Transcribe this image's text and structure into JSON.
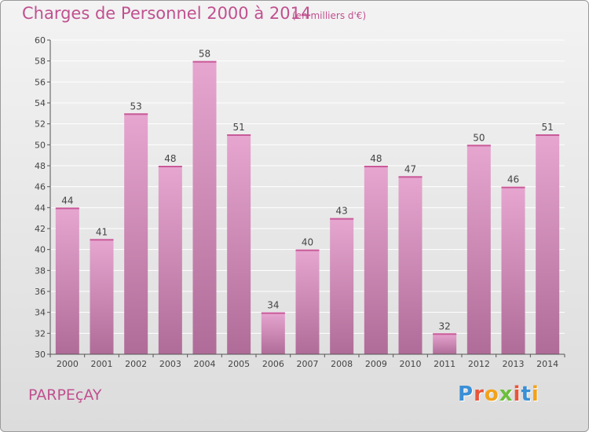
{
  "header": {
    "title": "Charges de Personnel 2000 à 2014",
    "subtitle": "(en milliers d'€)"
  },
  "footer": {
    "commune": "PARPEçAY",
    "logo_letters": [
      "P",
      "r",
      "o",
      "x",
      "i",
      "t",
      "i"
    ],
    "logo_colors": [
      "#3a8fd6",
      "#e8563a",
      "#f2a21b",
      "#6cbf3b",
      "#e8563a",
      "#3a8fd6",
      "#f2a21b"
    ]
  },
  "colors": {
    "accent": "#c0508f",
    "bar_top": "#e6a6d0",
    "bar_bottom": "#b06c98",
    "axis": "#555555",
    "grid": "#ffffff"
  },
  "chart_data": {
    "type": "bar",
    "title": "Charges de Personnel 2000 à 2014",
    "categories": [
      "2000",
      "2001",
      "2002",
      "2003",
      "2004",
      "2005",
      "2006",
      "2007",
      "2008",
      "2009",
      "2010",
      "2011",
      "2012",
      "2013",
      "2014"
    ],
    "values": [
      44,
      41,
      53,
      48,
      58,
      51,
      34,
      40,
      43,
      48,
      47,
      32,
      50,
      46,
      51
    ],
    "ylim": [
      30,
      60
    ],
    "yticks": [
      30,
      32,
      34,
      36,
      38,
      40,
      42,
      44,
      46,
      48,
      50,
      52,
      54,
      56,
      58,
      60
    ],
    "xlabel": "",
    "ylabel": "",
    "grid": true,
    "data_labels": true
  }
}
